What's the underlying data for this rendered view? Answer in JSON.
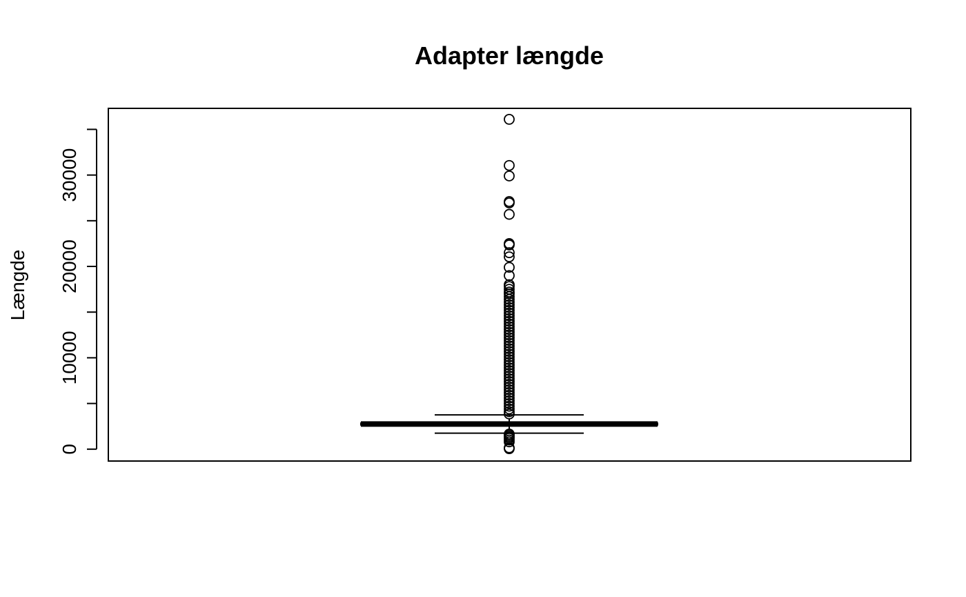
{
  "chart_data": {
    "type": "boxplot",
    "title": "Adapter længde",
    "xlabel": "",
    "ylabel": "Længde",
    "ylim": [
      -1300,
      37300
    ],
    "yticks": [
      0,
      5000,
      10000,
      15000,
      20000,
      25000,
      30000,
      35000
    ],
    "ytick_labels": [
      "0",
      "",
      "10000",
      "",
      "20000",
      "",
      "30000",
      ""
    ],
    "grid": false,
    "box": {
      "whisker_low": 1750,
      "q1": 2650,
      "median": 2750,
      "q3": 2850,
      "whisker_high": 3750
    },
    "outliers_high": [
      36100,
      31050,
      29900,
      27100,
      26950,
      25700,
      22500,
      22350,
      21500,
      21050,
      19900,
      19000,
      18000,
      17800,
      17500,
      17200,
      17000,
      16700,
      16400,
      16100,
      15800,
      15500,
      15200,
      14900,
      14600,
      14300,
      14000,
      13700,
      13400,
      13100,
      12800,
      12500,
      12200,
      11900,
      11600,
      11300,
      11000,
      10700,
      10400,
      10100,
      9800,
      9500,
      9200,
      8900,
      8600,
      8300,
      8000,
      7700,
      7400,
      7100,
      6800,
      6500,
      6200,
      5900,
      5600,
      5300,
      5000,
      4700,
      4400,
      4100,
      3850
    ],
    "outliers_low": [
      1650,
      1500,
      1350,
      1200,
      1000,
      800,
      150,
      50
    ]
  }
}
